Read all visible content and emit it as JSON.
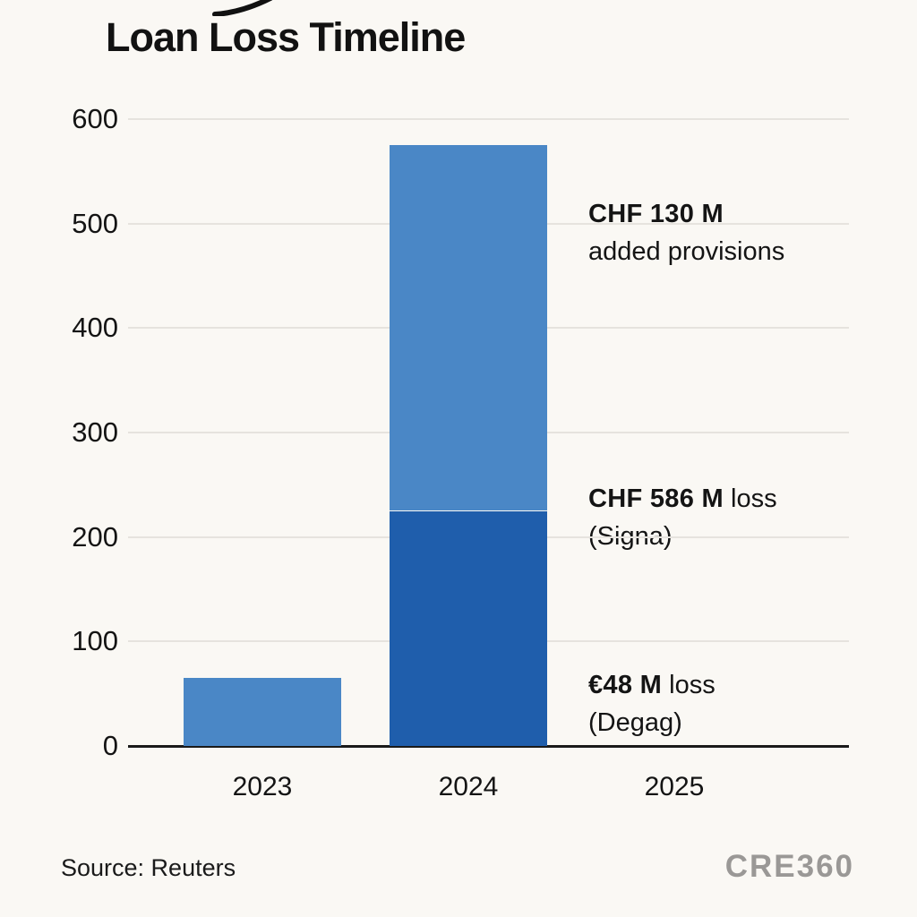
{
  "title": "Loan Loss Timeline",
  "source": "Source: Reuters",
  "brand": "CRE360",
  "colors": {
    "background": "#FAF8F4",
    "bar_light": "#4A87C6",
    "bar_dark": "#1F5EAC",
    "grid": "#E6E3DE",
    "axis": "#1A1A1A",
    "text": "#141414",
    "brand_gray": "#9A9896"
  },
  "chart_data": {
    "type": "bar",
    "stacked": true,
    "title": "Loan Loss Timeline",
    "xlabel": "",
    "ylabel": "",
    "ylim": [
      0,
      600
    ],
    "yticks": [
      0,
      100,
      200,
      300,
      400,
      500,
      600
    ],
    "grid": true,
    "legend": "none",
    "categories": [
      "2023",
      "2024",
      "2025"
    ],
    "series": [
      {
        "name": "dark-blue-segment",
        "color": "#1F5EAC",
        "values": [
          0,
          225,
          0
        ]
      },
      {
        "name": "light-blue-segment",
        "color": "#4A87C6",
        "values": [
          65,
          350,
          0
        ]
      }
    ],
    "totals": [
      65,
      575,
      0
    ],
    "annotations": [
      {
        "bold": "CHF 130 M",
        "rest": "",
        "line2": "added provisions"
      },
      {
        "bold": "CHF 586 M",
        "rest": " loss",
        "line2": "(Signa)"
      },
      {
        "bold": "€48 M",
        "rest": " loss",
        "line2": "(Degag)"
      }
    ]
  }
}
